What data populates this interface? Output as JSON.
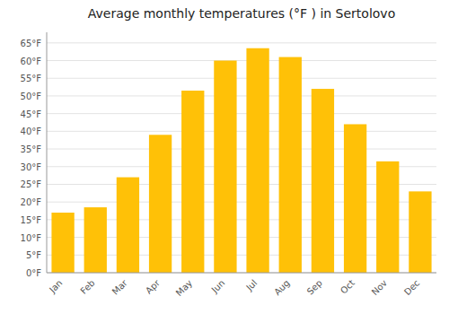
{
  "chart_data": {
    "type": "bar",
    "title": "Average monthly temperatures (°F ) in Sertolovo",
    "categories": [
      "Jan",
      "Feb",
      "Mar",
      "Apr",
      "May",
      "Jun",
      "Jul",
      "Aug",
      "Sep",
      "Oct",
      "Nov",
      "Dec"
    ],
    "values": [
      17,
      18.5,
      27,
      39,
      51.5,
      60,
      63.5,
      61,
      52,
      42,
      31.5,
      23
    ],
    "color": "#FFC107",
    "ylim": [
      0,
      68
    ],
    "yticks": [
      {
        "value": 0,
        "label": "0°F"
      },
      {
        "value": 5,
        "label": "5°F"
      },
      {
        "value": 10,
        "label": "10°F"
      },
      {
        "value": 15,
        "label": "15°F"
      },
      {
        "value": 20,
        "label": "20°F"
      },
      {
        "value": 25,
        "label": "25°F"
      },
      {
        "value": 30,
        "label": "30°F"
      },
      {
        "value": 35,
        "label": "35°F"
      },
      {
        "value": 40,
        "label": "40°F"
      },
      {
        "value": 45,
        "label": "45°F"
      },
      {
        "value": 50,
        "label": "50°F"
      },
      {
        "value": 55,
        "label": "55°F"
      },
      {
        "value": 60,
        "label": "60°F"
      },
      {
        "value": 65,
        "label": "65°F"
      }
    ],
    "grid": true
  }
}
